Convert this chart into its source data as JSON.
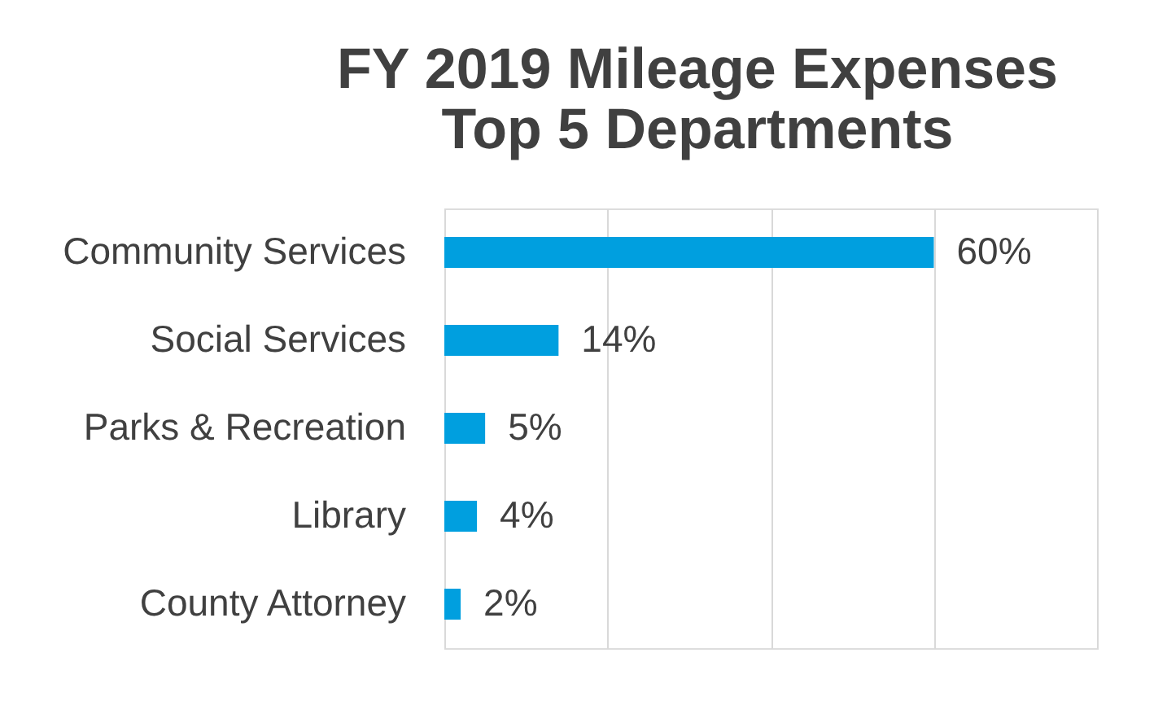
{
  "chart_data": {
    "type": "bar",
    "orientation": "horizontal",
    "title": "FY 2019 Mileage Expenses\nTop 5 Departments",
    "categories": [
      "Community Services",
      "Social Services",
      "Parks & Recreation",
      "Library",
      "County Attorney"
    ],
    "values": [
      60,
      14,
      5,
      4,
      2
    ],
    "value_labels": [
      "60%",
      "14%",
      "5%",
      "4%",
      "2%"
    ],
    "color": "#009fdf",
    "xlim": [
      0,
      80
    ],
    "xticks": [
      {
        "value": 0,
        "label": null
      },
      {
        "value": 20,
        "label": null
      },
      {
        "value": 40,
        "label": null
      },
      {
        "value": 60,
        "label": null
      },
      {
        "value": 80,
        "label": null
      }
    ],
    "tick_labels": "y",
    "grid": "x"
  }
}
